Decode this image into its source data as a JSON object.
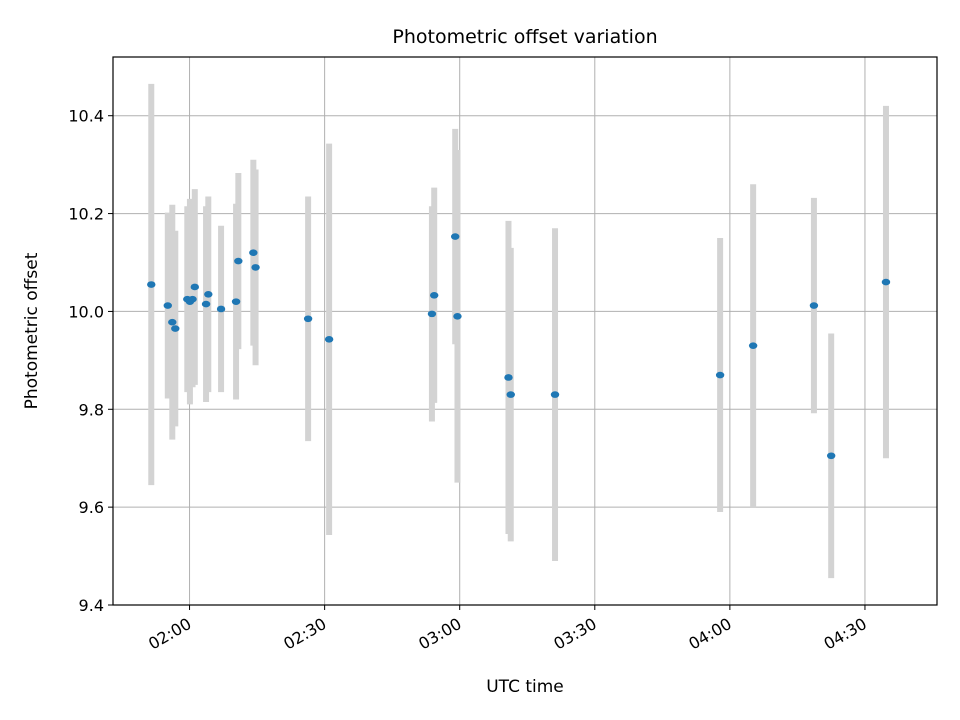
{
  "chart_data": {
    "type": "scatter",
    "title": "Photometric offset variation",
    "xlabel": "UTC time",
    "ylabel": "Photometric offset",
    "x_axis": "time",
    "xlim": [
      "01:43",
      "04:46"
    ],
    "ylim": [
      9.4,
      10.52
    ],
    "x_ticks": [
      "02:00",
      "02:30",
      "03:00",
      "03:30",
      "04:00",
      "04:30"
    ],
    "y_ticks": [
      9.4,
      9.6,
      9.8,
      10.0,
      10.2,
      10.4
    ],
    "y_tick_labels": [
      "9.4",
      "9.6",
      "9.8",
      "10.0",
      "10.2",
      "10.4"
    ],
    "x_tick_rotation": 30,
    "grid": true,
    "marker_color": "#1f77b4",
    "errorbar_color": "#d3d3d3",
    "points": [
      {
        "t": "01:51:30",
        "y": 10.055,
        "yerr": 0.41
      },
      {
        "t": "01:55:10",
        "y": 10.012,
        "yerr": 0.19
      },
      {
        "t": "01:56:10",
        "y": 9.978,
        "yerr": 0.24
      },
      {
        "t": "01:56:50",
        "y": 9.965,
        "yerr": 0.2
      },
      {
        "t": "01:59:30",
        "y": 10.025,
        "yerr": 0.19
      },
      {
        "t": "02:00:05",
        "y": 10.02,
        "yerr": 0.21
      },
      {
        "t": "02:00:40",
        "y": 10.025,
        "yerr": 0.18
      },
      {
        "t": "02:01:10",
        "y": 10.05,
        "yerr": 0.2
      },
      {
        "t": "02:03:40",
        "y": 10.015,
        "yerr": 0.2
      },
      {
        "t": "02:04:10",
        "y": 10.035,
        "yerr": 0.2
      },
      {
        "t": "02:07:00",
        "y": 10.005,
        "yerr": 0.17
      },
      {
        "t": "02:10:20",
        "y": 10.02,
        "yerr": 0.2
      },
      {
        "t": "02:10:50",
        "y": 10.103,
        "yerr": 0.18
      },
      {
        "t": "02:14:10",
        "y": 10.12,
        "yerr": 0.19
      },
      {
        "t": "02:14:40",
        "y": 10.09,
        "yerr": 0.2
      },
      {
        "t": "02:26:20",
        "y": 9.985,
        "yerr": 0.25
      },
      {
        "t": "02:31:00",
        "y": 9.943,
        "yerr": 0.4
      },
      {
        "t": "02:53:50",
        "y": 9.995,
        "yerr": 0.22
      },
      {
        "t": "02:54:20",
        "y": 10.033,
        "yerr": 0.22
      },
      {
        "t": "02:59:00",
        "y": 10.153,
        "yerr": 0.22
      },
      {
        "t": "02:59:30",
        "y": 9.99,
        "yerr": 0.34
      },
      {
        "t": "03:10:50",
        "y": 9.865,
        "yerr": 0.32
      },
      {
        "t": "03:11:20",
        "y": 9.83,
        "yerr": 0.3
      },
      {
        "t": "03:21:10",
        "y": 9.83,
        "yerr": 0.34
      },
      {
        "t": "03:57:50",
        "y": 9.87,
        "yerr": 0.28
      },
      {
        "t": "04:05:10",
        "y": 9.93,
        "yerr": 0.33
      },
      {
        "t": "04:18:40",
        "y": 10.012,
        "yerr": 0.22
      },
      {
        "t": "04:22:30",
        "y": 9.705,
        "yerr": 0.25
      },
      {
        "t": "04:34:40",
        "y": 10.06,
        "yerr": 0.36
      }
    ]
  }
}
